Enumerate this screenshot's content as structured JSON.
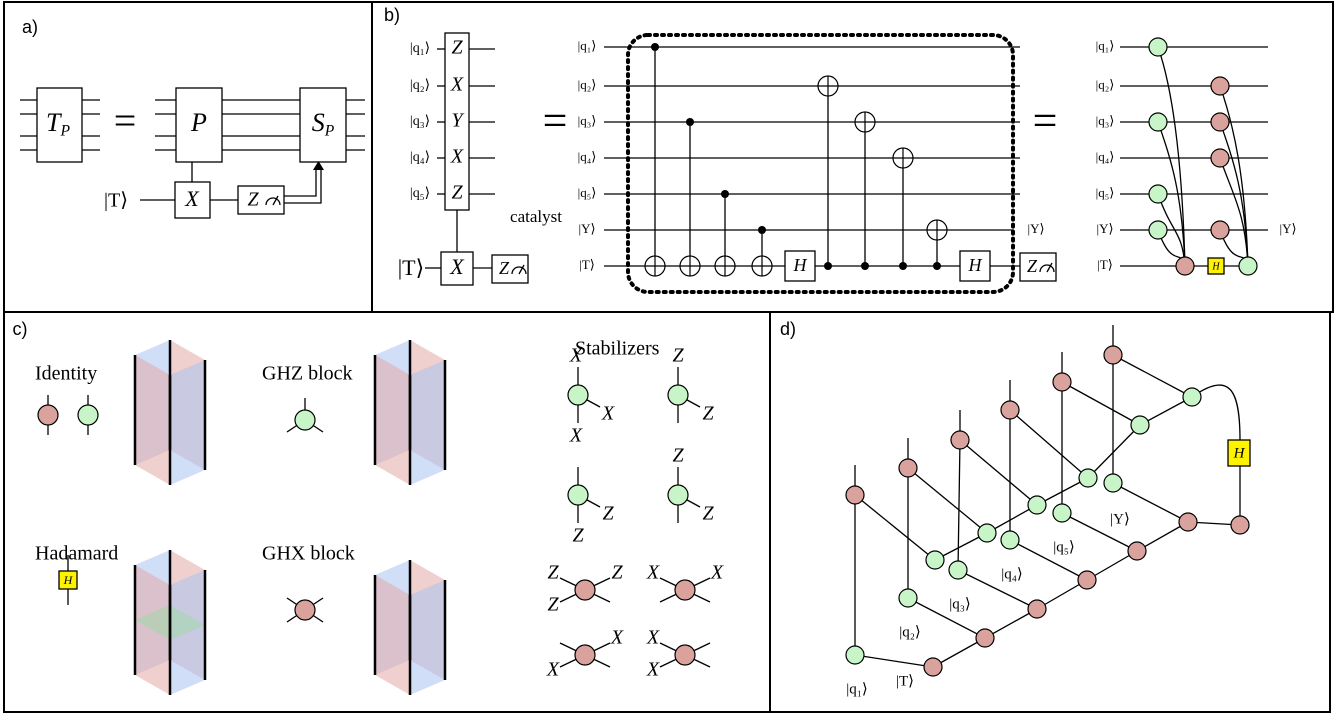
{
  "panels": {
    "a": {
      "label": "a)",
      "tp": {
        "base": "T",
        "sub": "P"
      },
      "equals": "=",
      "p": "P",
      "sp": {
        "base": "S",
        "sub": "P"
      },
      "ket_t": "|T⟩",
      "x": "X",
      "z": "Z"
    },
    "b": {
      "label": "b)",
      "left": {
        "qubits": [
          "|q₁⟩",
          "|q₂⟩",
          "|q₃⟩",
          "|q₄⟩",
          "|q₅⟩"
        ],
        "gates": [
          "Z",
          "X",
          "Y",
          "X",
          "Z"
        ],
        "ket_t": "|T⟩",
        "x": "X",
        "z": "Z"
      },
      "equals": [
        "=",
        "="
      ],
      "middle": {
        "qubits": [
          "|q₁⟩",
          "|q₂⟩",
          "|q₃⟩",
          "|q₄⟩",
          "|q₅⟩",
          "|Y⟩",
          "|T⟩"
        ],
        "catalyst": "catalyst",
        "h": [
          "H",
          "H"
        ],
        "out_y": "|Y⟩",
        "z": "Z"
      },
      "right": {
        "qubits": [
          "|q₁⟩",
          "|q₂⟩",
          "|q₃⟩",
          "|q₄⟩",
          "|q₅⟩",
          "|Y⟩",
          "|T⟩"
        ],
        "h": "H",
        "out_y": "|Y⟩"
      }
    },
    "c": {
      "label": "c)",
      "identity": "Identity",
      "ghz": "GHZ block",
      "hadamard": "Hadamard",
      "h": "H",
      "ghx": "GHX block",
      "stabilizers": {
        "title": "Stabilizers",
        "items": [
          [
            "X",
            "X",
            "X"
          ],
          [
            "Z",
            "Z"
          ],
          [
            "Z",
            "Z"
          ],
          [
            "Z",
            "Z"
          ],
          [
            "Z",
            "Z",
            "Z"
          ],
          [
            "X",
            "X"
          ],
          [
            "X",
            "X"
          ],
          [
            "X",
            "X"
          ]
        ]
      }
    },
    "d": {
      "label": "d)",
      "qubits": [
        "|q₁⟩",
        "|q₂⟩",
        "|q₃⟩",
        "|q₄⟩",
        "|q₅⟩"
      ],
      "y": "|Y⟩",
      "t": "|T⟩",
      "h": "H"
    }
  }
}
